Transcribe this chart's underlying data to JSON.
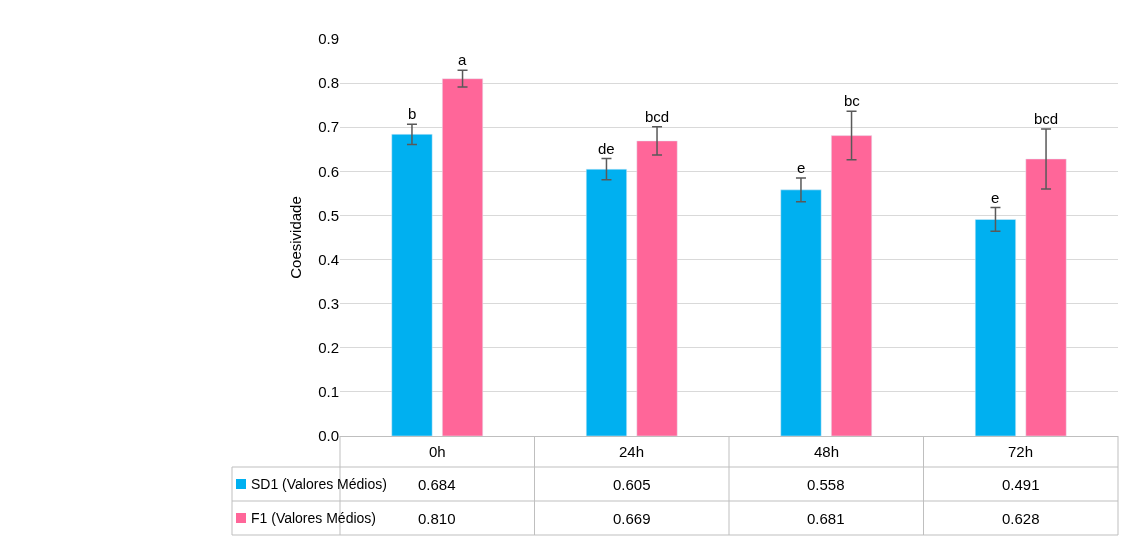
{
  "chart_data": {
    "type": "bar",
    "ylabel": "Coesividade",
    "categories": [
      "0h",
      "24h",
      "48h",
      "72h"
    ],
    "series": [
      {
        "name": "SD1 (Valores Médios)",
        "color": "#00b0f0",
        "values": [
          0.684,
          0.605,
          0.558,
          0.491
        ],
        "value_labels": [
          "0.684",
          "0.605",
          "0.558",
          "0.491"
        ],
        "errors": [
          0.023,
          0.024,
          0.027,
          0.027
        ]
      },
      {
        "name": "F1 (Valores Médios)",
        "color": "#ff6699",
        "values": [
          0.81,
          0.669,
          0.681,
          0.628
        ],
        "value_labels": [
          "0.810",
          "0.669",
          "0.681",
          "0.628"
        ],
        "errors": [
          0.019,
          0.032,
          0.055,
          0.068
        ]
      }
    ],
    "annotations": [
      "b",
      "a",
      "de",
      "bcd",
      "e",
      "bc",
      "e",
      "bcd"
    ],
    "ylim": [
      0,
      0.9
    ],
    "yticks": [
      {
        "value": 0,
        "label": "0.0"
      },
      0.1,
      0.2,
      0.3,
      0.4,
      0.5,
      0.6,
      0.7,
      0.8,
      0.9
    ],
    "grid": "y",
    "legend": "bottom"
  }
}
